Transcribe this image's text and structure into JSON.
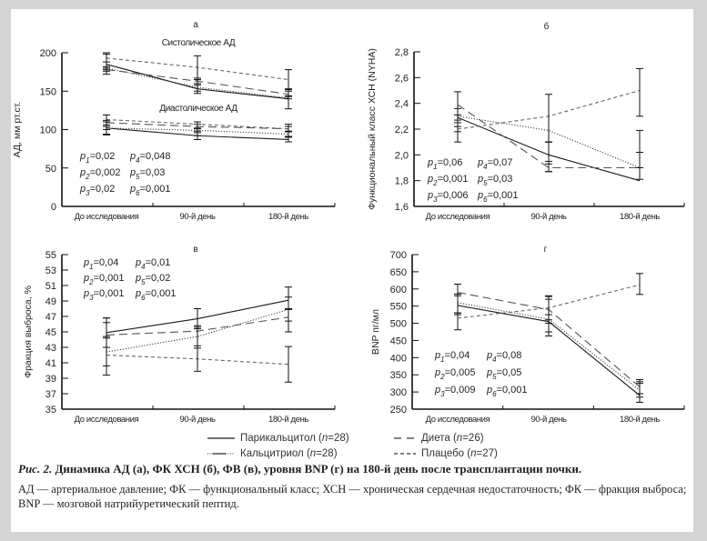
{
  "chart_data": [
    {
      "id": "a",
      "type": "line",
      "panel_label": "а",
      "ylabel": "АД, мм рт.ст.",
      "ylim": [
        0,
        200
      ],
      "yticks": [
        0,
        50,
        100,
        150,
        200
      ],
      "categories": [
        "До исследования",
        "90-й день",
        "180-й день"
      ],
      "annotations": [
        "Систолическое АД",
        "Диастолическое АД"
      ],
      "p_values": [
        [
          "p",
          "1",
          "=0,02"
        ],
        [
          "p",
          "4",
          "=0,048"
        ],
        [
          "p",
          "2",
          "=0,002"
        ],
        [
          "p",
          "5",
          "=0,03"
        ],
        [
          "p",
          "3",
          "=0,02"
        ],
        [
          "p",
          "6",
          "=0,001"
        ]
      ],
      "series": [
        {
          "name": "Парикальцитол (САД)",
          "group": "Парикальцитол",
          "values": [
            185,
            153,
            140
          ],
          "err": [
            [
              172,
              200
            ],
            [
              147,
              165
            ],
            [
              127,
              152
            ]
          ]
        },
        {
          "name": "Кальцитриол (САД)",
          "group": "Кальцитриол",
          "values": [
            180,
            155,
            141
          ],
          "err": [
            [
              178,
              182
            ],
            [
              150,
              158
            ],
            [
              140,
              143
            ]
          ]
        },
        {
          "name": "Диета (САД)",
          "group": "Диета",
          "values": [
            178,
            163,
            146
          ],
          "err": [
            [
              176,
              180
            ],
            [
              160,
              167
            ],
            [
              144,
              150
            ]
          ]
        },
        {
          "name": "Плацебо (САД)",
          "group": "Плацебо",
          "values": [
            193,
            181,
            165
          ],
          "err": [
            [
              188,
              198
            ],
            [
              165,
              196
            ],
            [
              153,
              178
            ]
          ]
        },
        {
          "name": "Парикальцитол (ДАД)",
          "group": "Парикальцитол",
          "values": [
            102,
            92,
            87
          ],
          "err": [
            [
              94,
              110
            ],
            [
              87,
              98
            ],
            [
              84,
              91
            ]
          ]
        },
        {
          "name": "Кальцитриол (ДАД)",
          "group": "Кальцитриол",
          "values": [
            102,
            99,
            94
          ],
          "err": [
            [
              100,
              104
            ],
            [
              96,
              102
            ],
            [
              91,
              97
            ]
          ]
        },
        {
          "name": "Диета (ДАД)",
          "group": "Диета",
          "values": [
            109,
            104,
            101
          ],
          "err": [
            [
              106,
              112
            ],
            [
              101,
              107
            ],
            [
              98,
              104
            ]
          ]
        },
        {
          "name": "Плацебо (ДАД)",
          "group": "Плацебо",
          "values": [
            113,
            107,
            101
          ],
          "err": [
            [
              93,
              119
            ],
            [
              92,
              110
            ],
            [
              90,
              107
            ]
          ]
        }
      ]
    },
    {
      "id": "b",
      "type": "line",
      "panel_label": "б",
      "ylabel": "Функциональный класс ХСН (NYHA)",
      "ylim": [
        1.6,
        2.8
      ],
      "yticks": [
        "1,6",
        "1,8",
        "2,0",
        "2,2",
        "2,4",
        "2,6",
        "2,8"
      ],
      "ytick_values": [
        1.6,
        1.8,
        2.0,
        2.2,
        2.4,
        2.6,
        2.8
      ],
      "categories": [
        "До исследования",
        "90-й день",
        "180-й день"
      ],
      "p_values": [
        [
          "p",
          "1",
          "=0,06"
        ],
        [
          "p",
          "4",
          "=0,07"
        ],
        [
          "p",
          "2",
          "=0,001"
        ],
        [
          "p",
          "5",
          "=0,03"
        ],
        [
          "p",
          "3",
          "=0,006"
        ],
        [
          "p",
          "6",
          "=0,001"
        ]
      ],
      "series": [
        {
          "name": "Парикальцитол",
          "group": "Парикальцитол",
          "values": [
            2.29,
            2.0,
            1.8
          ],
          "err": [
            [
              2.1,
              2.49
            ],
            [
              1.87,
              2.1
            ],
            [
              1.81,
              2.19
            ]
          ]
        },
        {
          "name": "Кальцитриол",
          "group": "Кальцитриол",
          "values": [
            2.3,
            2.19,
            1.9
          ],
          "err": [
            [
              2.25,
              2.36
            ],
            [
              2.1,
              2.1
            ],
            [
              1.9,
              2.02
            ]
          ]
        },
        {
          "name": "Диета",
          "group": "Диета",
          "values": [
            2.39,
            1.9,
            1.9
          ],
          "err": [
            [
              2.22,
              2.31
            ],
            [
              1.93,
              1.95
            ],
            [
              1.9,
              1.9
            ]
          ]
        },
        {
          "name": "Плацебо",
          "group": "Плацебо",
          "values": [
            2.2,
            2.3,
            2.5
          ],
          "err": [
            [
              2.18,
              2.27
            ],
            [
              1.87,
              2.47
            ],
            [
              2.3,
              2.67
            ]
          ]
        }
      ]
    },
    {
      "id": "c",
      "type": "line",
      "panel_label": "в",
      "ylabel": "Фракция выброса, %",
      "ylim": [
        35,
        55
      ],
      "yticks": [
        35,
        37,
        39,
        41,
        43,
        45,
        47,
        49,
        51,
        53,
        55
      ],
      "categories": [
        "До исследования",
        "90-й день",
        "180-й день"
      ],
      "p_values": [
        [
          "p",
          "1",
          "=0,04"
        ],
        [
          "p",
          "4",
          "=0,01"
        ],
        [
          "p",
          "2",
          "=0,001"
        ],
        [
          "p",
          "5",
          "=0,02"
        ],
        [
          "p",
          "3",
          "=0,001"
        ],
        [
          "p",
          "6",
          "=0,001"
        ]
      ],
      "series": [
        {
          "name": "Парикальцитол",
          "group": "Парикальцитол",
          "values": [
            44.9,
            46.7,
            49.1
          ],
          "err": [
            [
              43.0,
              46.8
            ],
            [
              45.4,
              48.0
            ],
            [
              47.9,
              50.8
            ]
          ]
        },
        {
          "name": "Кальцитриол",
          "group": "Кальцитриол",
          "values": [
            42.4,
            44.4,
            47.9
          ],
          "err": [
            [
              40.6,
              44.4
            ],
            [
              42.9,
              45.8
            ],
            [
              46.4,
              49.5
            ]
          ]
        },
        {
          "name": "Диета",
          "group": "Диета",
          "values": [
            44.6,
            45.1,
            46.9
          ],
          "err": [
            [
              44.2,
              46.2
            ],
            [
              43.2,
              45.6
            ],
            [
              45.0,
              48.0
            ]
          ]
        },
        {
          "name": "Плацебо",
          "group": "Плацебо",
          "values": [
            42.0,
            41.5,
            40.8
          ],
          "err": [
            [
              39.4,
              46.8
            ],
            [
              39.9,
              48.0
            ],
            [
              38.5,
              43.1
            ]
          ]
        }
      ]
    },
    {
      "id": "d",
      "type": "line",
      "panel_label": "г",
      "ylabel": "BNP пг/мл",
      "ylim": [
        250,
        700
      ],
      "yticks": [
        250,
        300,
        350,
        400,
        450,
        500,
        550,
        600,
        650,
        700
      ],
      "categories": [
        "До исследования",
        "90-й день",
        "180-й день"
      ],
      "p_values": [
        [
          "p",
          "1",
          "=0,04"
        ],
        [
          "p",
          "4",
          "=0,08"
        ],
        [
          "p",
          "2",
          "=0,005"
        ],
        [
          "p",
          "5",
          "=0,05"
        ],
        [
          "p",
          "3",
          "=0,009"
        ],
        [
          "p",
          "6",
          "=0,001"
        ]
      ],
      "series": [
        {
          "name": "Парикальцитол",
          "group": "Парикальцитол",
          "values": [
            552,
            505,
            290
          ],
          "err": [
            [
              481,
              614
            ],
            [
              463,
              578
            ],
            [
              270,
              336
            ]
          ]
        },
        {
          "name": "Кальцитриол",
          "group": "Кальцитриол",
          "values": [
            560,
            512,
            305
          ],
          "err": [
            [
              525,
              585
            ],
            [
              475,
              525
            ],
            [
              285,
              325
            ]
          ]
        },
        {
          "name": "Диета",
          "group": "Диета",
          "values": [
            590,
            540,
            315
          ],
          "err": [
            [
              530,
              580
            ],
            [
              510,
              570
            ],
            [
              295,
              330
            ]
          ]
        },
        {
          "name": "Плацебо",
          "group": "Плацебо",
          "values": [
            515,
            545,
            612
          ],
          "err": [
            [
              530,
              585
            ],
            [
              500,
              580
            ],
            [
              584,
              645
            ]
          ]
        }
      ]
    }
  ],
  "legend": [
    {
      "group": "Парикальцитол",
      "label_pre": "Парикальцитол (",
      "n_sym": "n",
      "label_post": "=28)"
    },
    {
      "group": "Диета",
      "label_pre": "Диета (",
      "n_sym": "n",
      "label_post": "=26)"
    },
    {
      "group": "Кальцитриол",
      "label_pre": "Кальцитриол (",
      "n_sym": "n",
      "label_post": "=28)"
    },
    {
      "group": "Плацебо",
      "label_pre": "Плацебо (",
      "n_sym": "n",
      "label_post": "=27)"
    }
  ],
  "caption": {
    "prefix": "Рис. 2.",
    "title": " Динамика АД (а), ФК ХСН (б), ФВ (в), уровня BNP (г) на 180-й день после трансплантации почки.",
    "note": "АД — артериальное давление; ФК — функциональный класс; ХСН — хроническая сердечная недостаточность; ФК — фракция выброса; BNP — мозговой натрийуретический пептид."
  },
  "styles": {
    "Парикальцитол": {
      "color": "#1a1a1a",
      "dash": ""
    },
    "Кальцитриол": {
      "color": "#444444",
      "dash": "1.2,1.8"
    },
    "Диета": {
      "color": "#555555",
      "dash": "9,5"
    },
    "Плацебо": {
      "color": "#666666",
      "dash": "4,3"
    }
  }
}
